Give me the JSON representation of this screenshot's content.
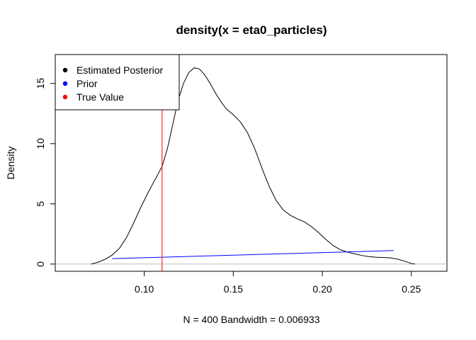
{
  "chart_data": {
    "type": "line",
    "title": "density(x = eta0_particles)",
    "xlabel": "N = 400   Bandwidth = 0.006933",
    "ylabel": "Density",
    "xlim": [
      0.05,
      0.27
    ],
    "ylim": [
      -0.6,
      17.4
    ],
    "x_ticks": [
      "0.10",
      "0.15",
      "0.20",
      "0.25"
    ],
    "x_tick_values": [
      0.1,
      0.15,
      0.2,
      0.25
    ],
    "y_ticks": [
      "0",
      "5",
      "10",
      "15"
    ],
    "y_tick_values": [
      0,
      5,
      10,
      15
    ],
    "grid": false,
    "legend_position": "top-left",
    "legend": [
      {
        "label": "Estimated Posterior",
        "color": "#000000"
      },
      {
        "label": "Prior",
        "color": "#0000ff"
      },
      {
        "label": "True Value",
        "color": "#ff0000"
      }
    ],
    "series": [
      {
        "name": "Estimated Posterior",
        "color": "#000000",
        "x": [
          0.07,
          0.074,
          0.078,
          0.082,
          0.086,
          0.09,
          0.094,
          0.098,
          0.102,
          0.106,
          0.11,
          0.113,
          0.116,
          0.119,
          0.122,
          0.125,
          0.128,
          0.131,
          0.134,
          0.137,
          0.14,
          0.143,
          0.146,
          0.15,
          0.154,
          0.158,
          0.162,
          0.166,
          0.17,
          0.174,
          0.178,
          0.182,
          0.186,
          0.19,
          0.194,
          0.198,
          0.202,
          0.206,
          0.21,
          0.214,
          0.218,
          0.222,
          0.226,
          0.23,
          0.234,
          0.238,
          0.242,
          0.246,
          0.25,
          0.252
        ],
        "y": [
          0.0,
          0.15,
          0.4,
          0.75,
          1.3,
          2.2,
          3.4,
          4.7,
          5.9,
          7.0,
          8.1,
          9.6,
          11.6,
          13.6,
          15.0,
          15.9,
          16.3,
          16.2,
          15.7,
          15.0,
          14.2,
          13.5,
          12.9,
          12.4,
          11.8,
          10.9,
          9.6,
          8.0,
          6.5,
          5.3,
          4.5,
          4.05,
          3.75,
          3.5,
          3.1,
          2.6,
          2.05,
          1.55,
          1.2,
          1.0,
          0.85,
          0.72,
          0.62,
          0.57,
          0.55,
          0.52,
          0.42,
          0.25,
          0.05,
          0.0
        ]
      },
      {
        "name": "Prior",
        "color": "#0000ff",
        "x": [
          0.082,
          0.24
        ],
        "y": [
          0.45,
          1.12
        ]
      }
    ],
    "true_value": {
      "name": "True Value",
      "x": 0.11,
      "color": "#ff0000"
    },
    "baseline": {
      "y": 0,
      "color": "#bebebe"
    }
  }
}
